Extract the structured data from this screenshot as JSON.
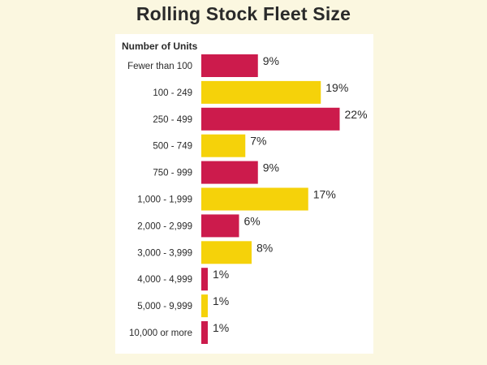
{
  "chart_data": {
    "type": "bar",
    "orientation": "horizontal",
    "title": "Rolling Stock Fleet Size",
    "ylabel": "Number of Units",
    "xlabel": "",
    "categories": [
      "Fewer than 100",
      "100 - 249",
      "250 - 499",
      "500 - 749",
      "750 - 999",
      "1,000 - 1,999",
      "2,000 - 2,999",
      "3,000 - 3,999",
      "4,000 - 4,999",
      "5,000 - 9,999",
      "10,000 or more"
    ],
    "values": [
      9,
      19,
      22,
      7,
      9,
      17,
      6,
      8,
      1,
      1,
      1
    ],
    "value_labels": [
      "9%",
      "19%",
      "22%",
      "7%",
      "9%",
      "17%",
      "6%",
      "8%",
      "1%",
      "1%",
      "1%"
    ],
    "xlim": [
      0,
      22
    ],
    "grid": false,
    "colors": [
      "#cc1b4c",
      "#f5d20a"
    ]
  }
}
